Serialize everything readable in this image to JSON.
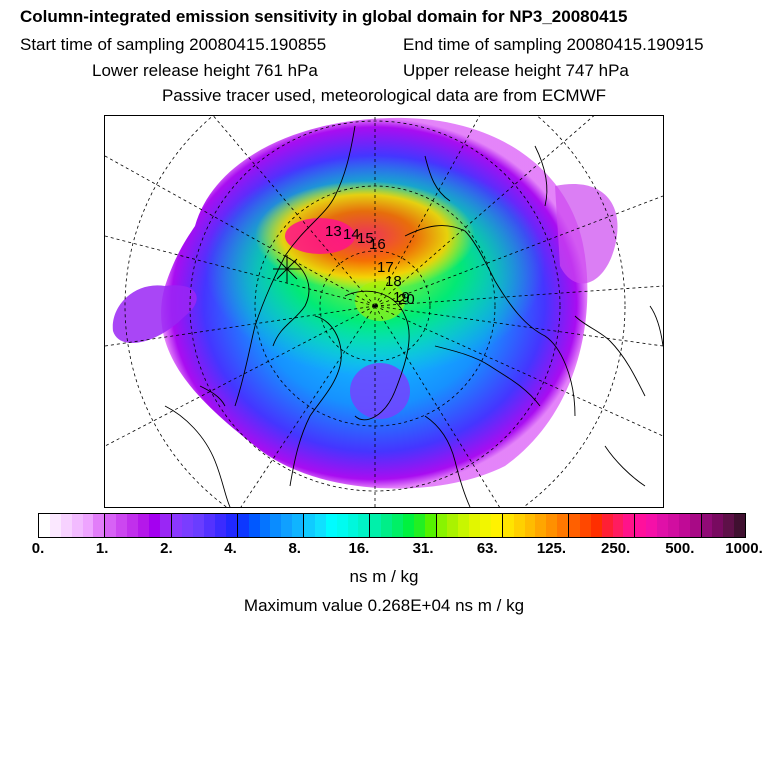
{
  "header": {
    "title": "Column-integrated emission sensitivity in global domain for NP3_20080415",
    "start_sampling": "Start time of sampling 20080415.190855",
    "end_sampling": "End time of sampling 20080415.190915",
    "lower_release": "Lower release height  761 hPa",
    "upper_release": "Upper release height  747 hPa",
    "tracer_note": "Passive tracer used, meteorological data are from ECMWF"
  },
  "map": {
    "trajectory_labels": [
      "13",
      "14",
      "15",
      "16",
      "17",
      "18",
      "19",
      "20"
    ]
  },
  "colorbar": {
    "tick_labels": [
      "0.",
      "1.",
      "2.",
      "4.",
      "8.",
      "16.",
      "31.",
      "63.",
      "125.",
      "250.",
      "500.",
      "1000."
    ],
    "colors": [
      "#ffffff",
      "#fbe8ff",
      "#f7d2ff",
      "#f2bbff",
      "#eea4ff",
      "#e27df9",
      "#d762f5",
      "#cc47f0",
      "#c130ec",
      "#b518ea",
      "#a400f0",
      "#9a26f5",
      "#8b38ff",
      "#7a3dff",
      "#6a3dff",
      "#5432ff",
      "#3b2bff",
      "#2028ff",
      "#0d37ff",
      "#0058ff",
      "#0574ff",
      "#0a8cff",
      "#10a0ff",
      "#10b4ff",
      "#10cbff",
      "#10e0ff",
      "#00fcff",
      "#00fbf0",
      "#00f7dc",
      "#00f3c6",
      "#00f0aa",
      "#00ee88",
      "#00f066",
      "#00f23f",
      "#22f022",
      "#55f200",
      "#88f400",
      "#aaf200",
      "#c8f600",
      "#e2f600",
      "#f2f600",
      "#fff200",
      "#ffe400",
      "#ffd000",
      "#ffbc00",
      "#ffa600",
      "#ff9000",
      "#ff7800",
      "#ff6000",
      "#ff4800",
      "#ff2f00",
      "#ff1f35",
      "#ff1c60",
      "#ff138a",
      "#ff109c",
      "#f510a8",
      "#e010a8",
      "#d10ea0",
      "#c00a96",
      "#a80a86",
      "#900a76",
      "#780a60",
      "#5e1048",
      "#401030"
    ],
    "unit": "ns m / kg"
  },
  "footer": {
    "max_value": "Maximum value  0.268E+04 ns m / kg"
  }
}
